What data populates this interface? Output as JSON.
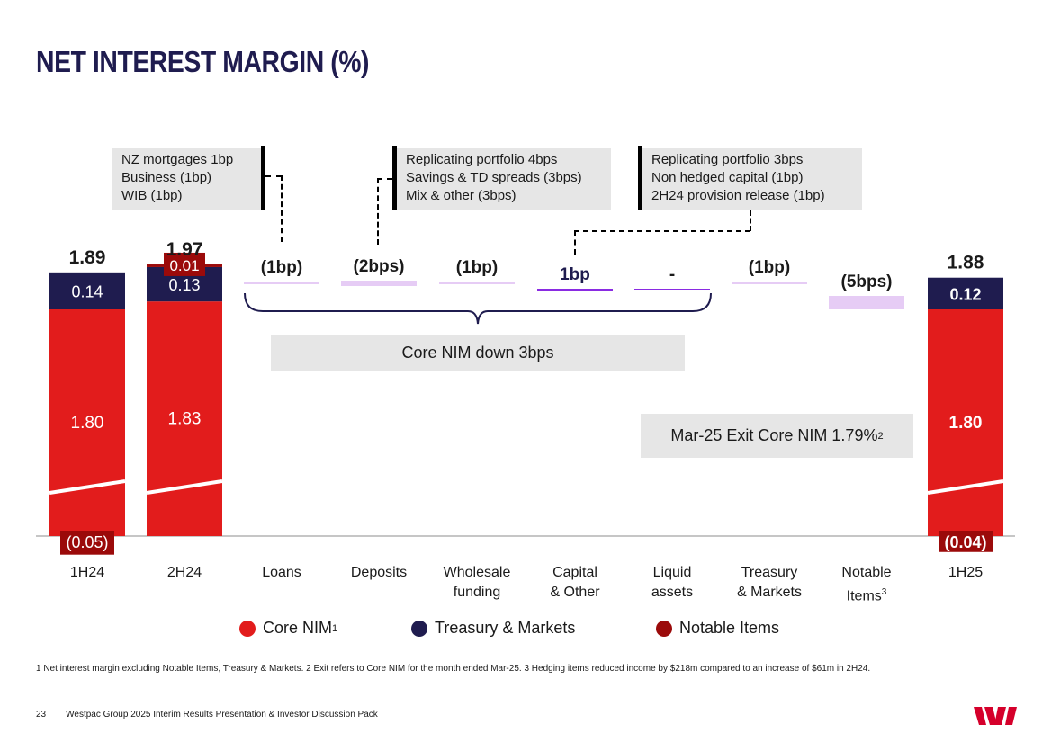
{
  "title": "NET INTEREST MARGIN (%)",
  "callouts": [
    {
      "lines": [
        "NZ mortgages 1bp",
        "Business (1bp)",
        "WIB (1bp)"
      ]
    },
    {
      "lines": [
        "Replicating portfolio 4bps",
        "Savings & TD spreads (3bps)",
        "Mix & other (3bps)"
      ]
    },
    {
      "lines": [
        "Replicating portfolio 3bps",
        "Non hedged capital (1bp)",
        "2H24 provision release (1bp)"
      ]
    }
  ],
  "core_nim_box": "Core NIM down 3bps",
  "exit_nim_box": {
    "text": "Mar-25 Exit Core NIM 1.79%",
    "sup": "2"
  },
  "categories": [
    {
      "lines": [
        "1H24"
      ]
    },
    {
      "lines": [
        "2H24"
      ]
    },
    {
      "lines": [
        "Loans"
      ]
    },
    {
      "lines": [
        "Deposits"
      ]
    },
    {
      "lines": [
        "Wholesale",
        "funding"
      ]
    },
    {
      "lines": [
        "Capital",
        "& Other"
      ]
    },
    {
      "lines": [
        "Liquid",
        "assets"
      ]
    },
    {
      "lines": [
        "Treasury",
        "& Markets"
      ]
    },
    {
      "lines": [
        "Notable",
        "Items"
      ],
      "sup": "3"
    },
    {
      "lines": [
        "1H25"
      ]
    }
  ],
  "legend": [
    {
      "label": "Core NIM",
      "sup": "1",
      "color": "#e21c1c"
    },
    {
      "label": "Treasury & Markets",
      "sup": "",
      "color": "#1f1c4f"
    },
    {
      "label": "Notable Items",
      "sup": "",
      "color": "#9b0a0a"
    }
  ],
  "footnote": "1 Net interest margin excluding Notable Items, Treasury & Markets. 2 Exit refers to Core NIM for the month ended Mar-25. 3 Hedging items reduced income by $218m compared to an increase of $61m in 2H24.",
  "footer": {
    "page": "23",
    "text": "Westpac Group 2025 Interim Results Presentation & Investor Discussion Pack"
  },
  "colors": {
    "core": "#e21c1c",
    "tm": "#1f1c4f",
    "notable": "#9b0a0a",
    "neg": "#e6ccf5",
    "pos": "#8a2be2"
  },
  "chart_data": {
    "type": "waterfall",
    "title": "Net interest margin (%)",
    "unit": "%",
    "stacked_bars": [
      {
        "category": "1H24",
        "total": 1.89,
        "total_label": "1.89",
        "segments": [
          {
            "series": "Notable Items",
            "value": -0.05,
            "label": "(0.05)"
          },
          {
            "series": "Core NIM",
            "value": 1.8,
            "label": "1.80"
          },
          {
            "series": "Treasury & Markets",
            "value": 0.14,
            "label": "0.14"
          }
        ]
      },
      {
        "category": "2H24",
        "total": 1.97,
        "total_label": "1.97",
        "segments": [
          {
            "series": "Core NIM",
            "value": 1.83,
            "label": "1.83"
          },
          {
            "series": "Treasury & Markets",
            "value": 0.13,
            "label": "0.13"
          },
          {
            "series": "Notable Items",
            "value": 0.01,
            "label": "0.01"
          }
        ]
      },
      {
        "category": "1H25",
        "total": 1.88,
        "total_label": "1.88",
        "segments": [
          {
            "series": "Notable Items",
            "value": -0.04,
            "label": "(0.04)"
          },
          {
            "series": "Core NIM",
            "value": 1.8,
            "label": "1.80"
          },
          {
            "series": "Treasury & Markets",
            "value": 0.12,
            "label": "0.12"
          }
        ]
      }
    ],
    "movements": [
      {
        "category": "Loans",
        "bps": -1,
        "label": "(1bp)"
      },
      {
        "category": "Deposits",
        "bps": -2,
        "label": "(2bps)"
      },
      {
        "category": "Wholesale funding",
        "bps": -1,
        "label": "(1bp)"
      },
      {
        "category": "Capital & Other",
        "bps": 1,
        "label": "1bp"
      },
      {
        "category": "Liquid assets",
        "bps": 0,
        "label": "-"
      },
      {
        "category": "Treasury & Markets",
        "bps": -1,
        "label": "(1bp)"
      },
      {
        "category": "Notable Items",
        "bps": -5,
        "label": "(5bps)"
      }
    ]
  }
}
